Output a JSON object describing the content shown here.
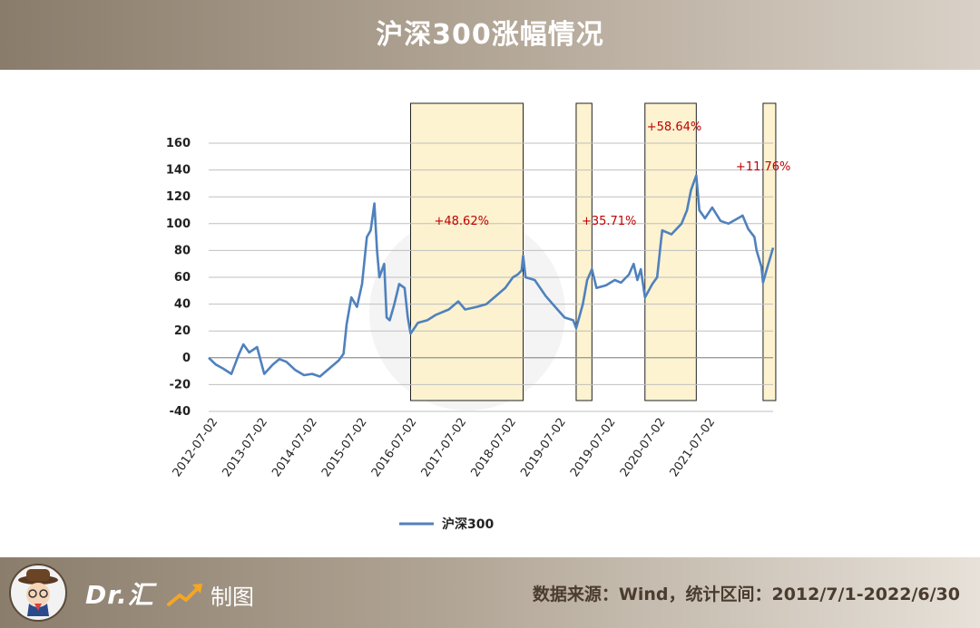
{
  "header": {
    "title": "沪深300涨幅情况"
  },
  "chart_data": {
    "type": "line",
    "title": "",
    "xlabel": "",
    "ylabel": "",
    "ylim": [
      -40,
      160
    ],
    "yticks": [
      "160",
      "140",
      "120",
      "100",
      "80",
      "60",
      "40",
      "20",
      "0",
      "-20",
      "-40"
    ],
    "xlim": [
      "2012-07-01",
      "2022-06-30"
    ],
    "xticks": [
      "2012-07-02",
      "2013-07-02",
      "2014-07-02",
      "2015-07-02",
      "2016-07-02",
      "2017-07-02",
      "2018-07-02",
      "2019-07-02",
      "2019-07-02",
      "2020-07-02",
      "2021-07-02"
    ],
    "grid": true,
    "legend_position": "bottom",
    "series": [
      {
        "name": "沪深300",
        "color": "#4f81bd",
        "points": [
          [
            "2012-07-01",
            0
          ],
          [
            "2012-08-15",
            -5
          ],
          [
            "2012-10-01",
            -8
          ],
          [
            "2012-11-25",
            -12
          ],
          [
            "2013-01-10",
            2
          ],
          [
            "2013-02-10",
            10
          ],
          [
            "2013-03-20",
            4
          ],
          [
            "2013-05-10",
            8
          ],
          [
            "2013-06-25",
            -12
          ],
          [
            "2013-08-20",
            -5
          ],
          [
            "2013-10-01",
            -1
          ],
          [
            "2013-11-15",
            -3
          ],
          [
            "2014-01-10",
            -9
          ],
          [
            "2014-03-10",
            -13
          ],
          [
            "2014-05-01",
            -12
          ],
          [
            "2014-06-20",
            -14
          ],
          [
            "2014-08-20",
            -8
          ],
          [
            "2014-10-20",
            -2
          ],
          [
            "2014-11-20",
            3
          ],
          [
            "2014-12-10",
            25
          ],
          [
            "2015-01-10",
            45
          ],
          [
            "2015-02-15",
            38
          ],
          [
            "2015-03-20",
            55
          ],
          [
            "2015-04-20",
            90
          ],
          [
            "2015-05-15",
            95
          ],
          [
            "2015-06-08",
            115
          ],
          [
            "2015-06-25",
            80
          ],
          [
            "2015-07-10",
            60
          ],
          [
            "2015-08-10",
            70
          ],
          [
            "2015-08-26",
            30
          ],
          [
            "2015-09-15",
            28
          ],
          [
            "2015-10-15",
            40
          ],
          [
            "2015-11-15",
            55
          ],
          [
            "2015-12-20",
            52
          ],
          [
            "2016-01-10",
            30
          ],
          [
            "2016-01-28",
            18
          ],
          [
            "2016-03-15",
            26
          ],
          [
            "2016-05-15",
            28
          ],
          [
            "2016-07-10",
            32
          ],
          [
            "2016-10-01",
            36
          ],
          [
            "2016-12-01",
            42
          ],
          [
            "2017-01-15",
            36
          ],
          [
            "2017-04-01",
            38
          ],
          [
            "2017-06-01",
            40
          ],
          [
            "2017-08-01",
            46
          ],
          [
            "2017-10-01",
            52
          ],
          [
            "2017-11-20",
            60
          ],
          [
            "2017-12-20",
            62
          ],
          [
            "2018-01-15",
            65
          ],
          [
            "2018-01-25",
            76
          ],
          [
            "2018-02-10",
            60
          ],
          [
            "2018-04-10",
            58
          ],
          [
            "2018-06-20",
            46
          ],
          [
            "2018-08-20",
            38
          ],
          [
            "2018-10-20",
            30
          ],
          [
            "2018-12-15",
            28
          ],
          [
            "2019-01-03",
            22
          ],
          [
            "2019-02-15",
            40
          ],
          [
            "2019-03-15",
            58
          ],
          [
            "2019-04-15",
            66
          ],
          [
            "2019-05-15",
            52
          ],
          [
            "2019-07-15",
            54
          ],
          [
            "2019-09-10",
            58
          ],
          [
            "2019-10-20",
            56
          ],
          [
            "2019-12-10",
            62
          ],
          [
            "2020-01-10",
            70
          ],
          [
            "2020-02-03",
            58
          ],
          [
            "2020-02-25",
            66
          ],
          [
            "2020-03-23",
            45
          ],
          [
            "2020-05-10",
            55
          ],
          [
            "2020-06-10",
            60
          ],
          [
            "2020-07-03",
            85
          ],
          [
            "2020-07-13",
            95
          ],
          [
            "2020-09-10",
            92
          ],
          [
            "2020-11-15",
            100
          ],
          [
            "2020-12-20",
            110
          ],
          [
            "2021-01-15",
            125
          ],
          [
            "2021-02-18",
            136
          ],
          [
            "2021-03-10",
            110
          ],
          [
            "2021-04-15",
            104
          ],
          [
            "2021-06-01",
            112
          ],
          [
            "2021-07-25",
            102
          ],
          [
            "2021-09-15",
            100
          ],
          [
            "2021-11-15",
            104
          ],
          [
            "2021-12-15",
            106
          ],
          [
            "2022-01-20",
            96
          ],
          [
            "2022-03-01",
            90
          ],
          [
            "2022-03-15",
            80
          ],
          [
            "2022-04-15",
            68
          ],
          [
            "2022-04-26",
            56
          ],
          [
            "2022-05-20",
            66
          ],
          [
            "2022-06-15",
            76
          ],
          [
            "2022-06-30",
            82
          ]
        ]
      }
    ],
    "highlight_periods": [
      {
        "start": "2016-01-28",
        "end": "2018-01-25",
        "label": "+48.62%"
      },
      {
        "start": "2019-01-03",
        "end": "2019-04-15",
        "label": "+35.71%"
      },
      {
        "start": "2020-03-23",
        "end": "2021-02-18",
        "label": "+58.64%"
      },
      {
        "start": "2022-04-26",
        "end": "2022-06-30",
        "label": "+11.76%"
      }
    ],
    "colors": {
      "highlight_fill": "#fdf1c8",
      "highlight_stroke": "#222222",
      "label": "#c00000",
      "axis_text": "#222222",
      "grid": "#bfbfbf"
    }
  },
  "footer": {
    "brand": "Dr.汇",
    "made": "制图",
    "source": "数据来源：Wind，统计区间：2012/7/1-2022/6/30"
  }
}
